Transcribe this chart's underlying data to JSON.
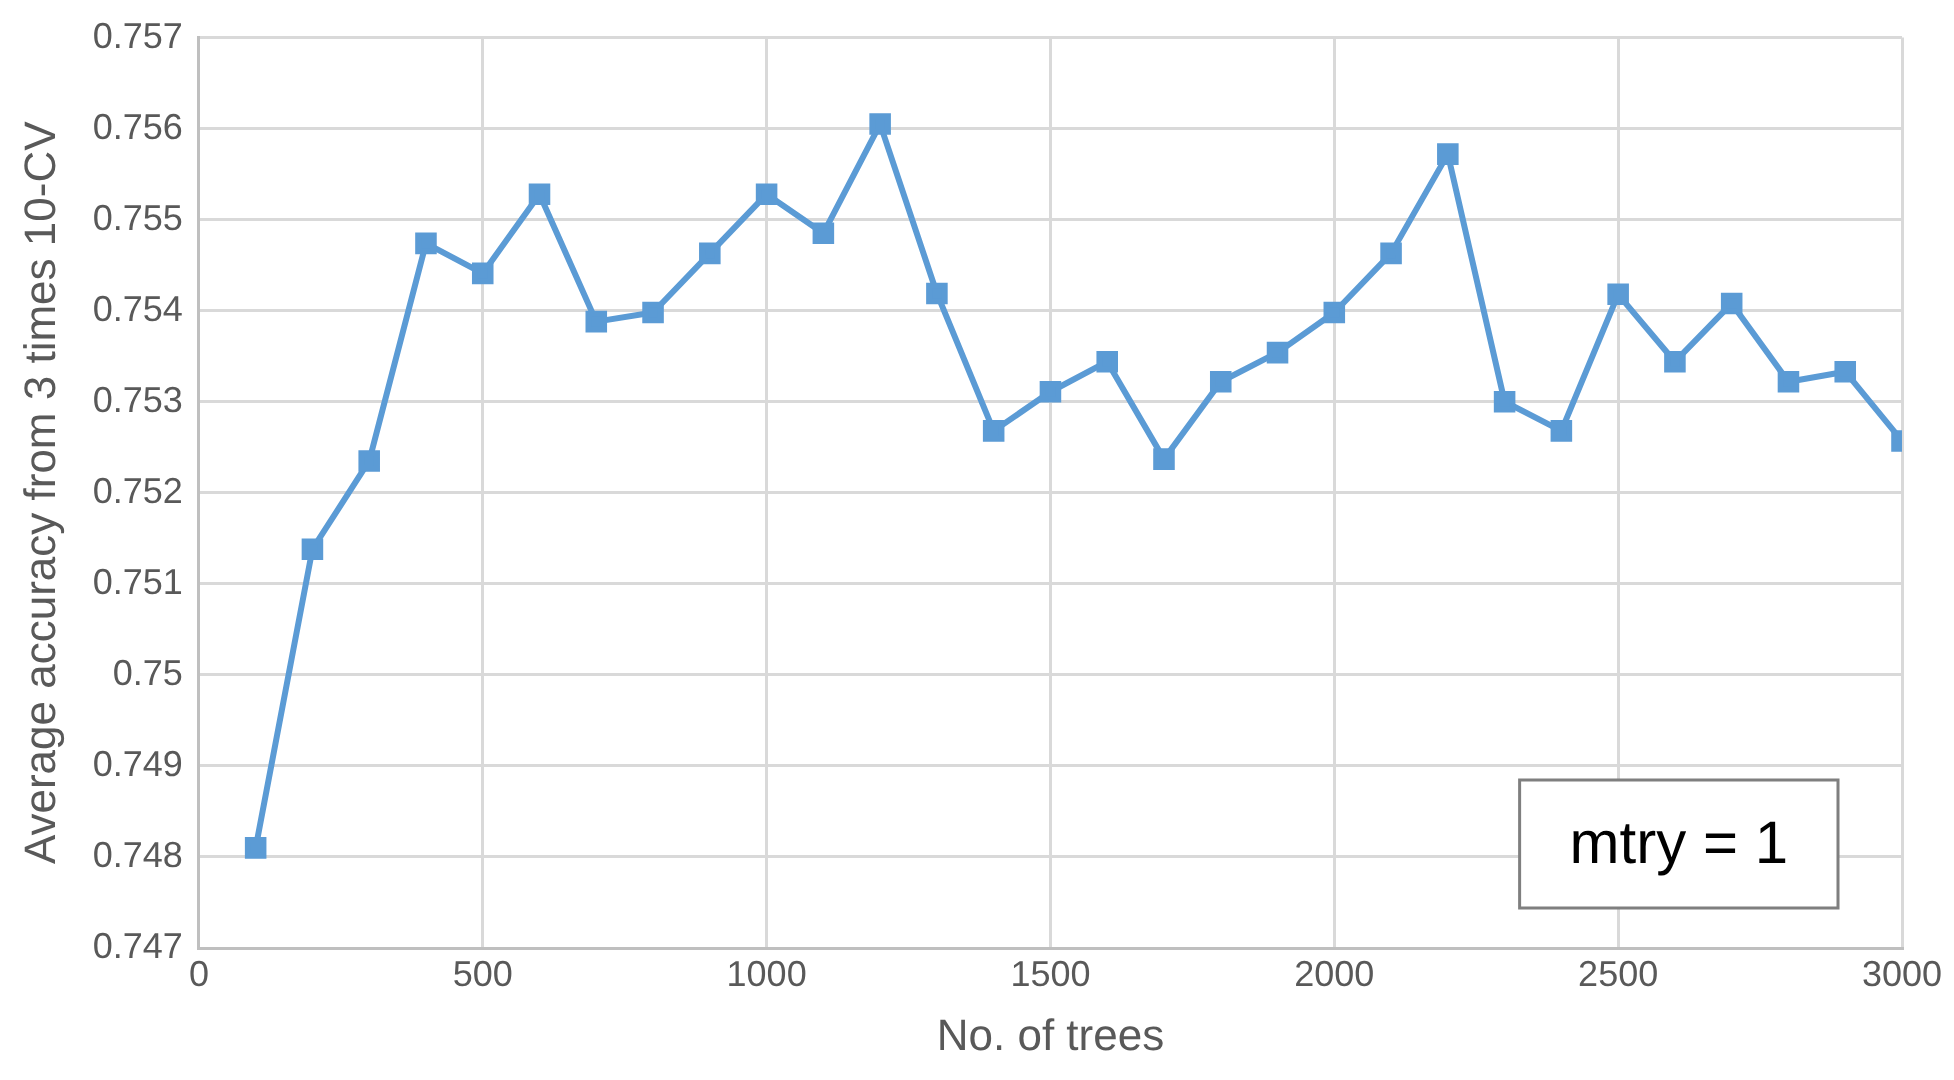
{
  "chart_data": {
    "type": "line",
    "xlabel": "No. of trees",
    "ylabel": "Average accuracy from 3 times 10-CV",
    "x": [
      100,
      200,
      300,
      400,
      500,
      600,
      700,
      800,
      900,
      1000,
      1100,
      1200,
      1300,
      1400,
      1500,
      1600,
      1700,
      1800,
      1900,
      2000,
      2100,
      2200,
      2300,
      2400,
      2500,
      2600,
      2700,
      2800,
      2900,
      3000
    ],
    "series": [
      {
        "color": "#5b9bd5",
        "values": [
          0.7481,
          0.75138,
          0.75235,
          0.75474,
          0.75441,
          0.75528,
          0.75388,
          0.75398,
          0.75463,
          0.75528,
          0.75485,
          0.75605,
          0.75419,
          0.75268,
          0.75311,
          0.75344,
          0.75237,
          0.75322,
          0.75354,
          0.75398,
          0.75463,
          0.75572,
          0.753,
          0.75268,
          0.75418,
          0.75344,
          0.75408,
          0.75322,
          0.75333,
          0.75257
        ]
      }
    ],
    "xlim": [
      0,
      3000
    ],
    "xticks": [
      0,
      500,
      1000,
      1500,
      2000,
      2500,
      3000
    ],
    "ylim": [
      0.747,
      0.757
    ],
    "yticks": [
      0.747,
      0.748,
      0.749,
      0.75,
      0.751,
      0.752,
      0.753,
      0.754,
      0.755,
      0.756,
      0.757
    ],
    "grid": true,
    "legend": false,
    "marker": "square",
    "line_style": "solid",
    "annotations": [
      "mtry = 1"
    ]
  }
}
